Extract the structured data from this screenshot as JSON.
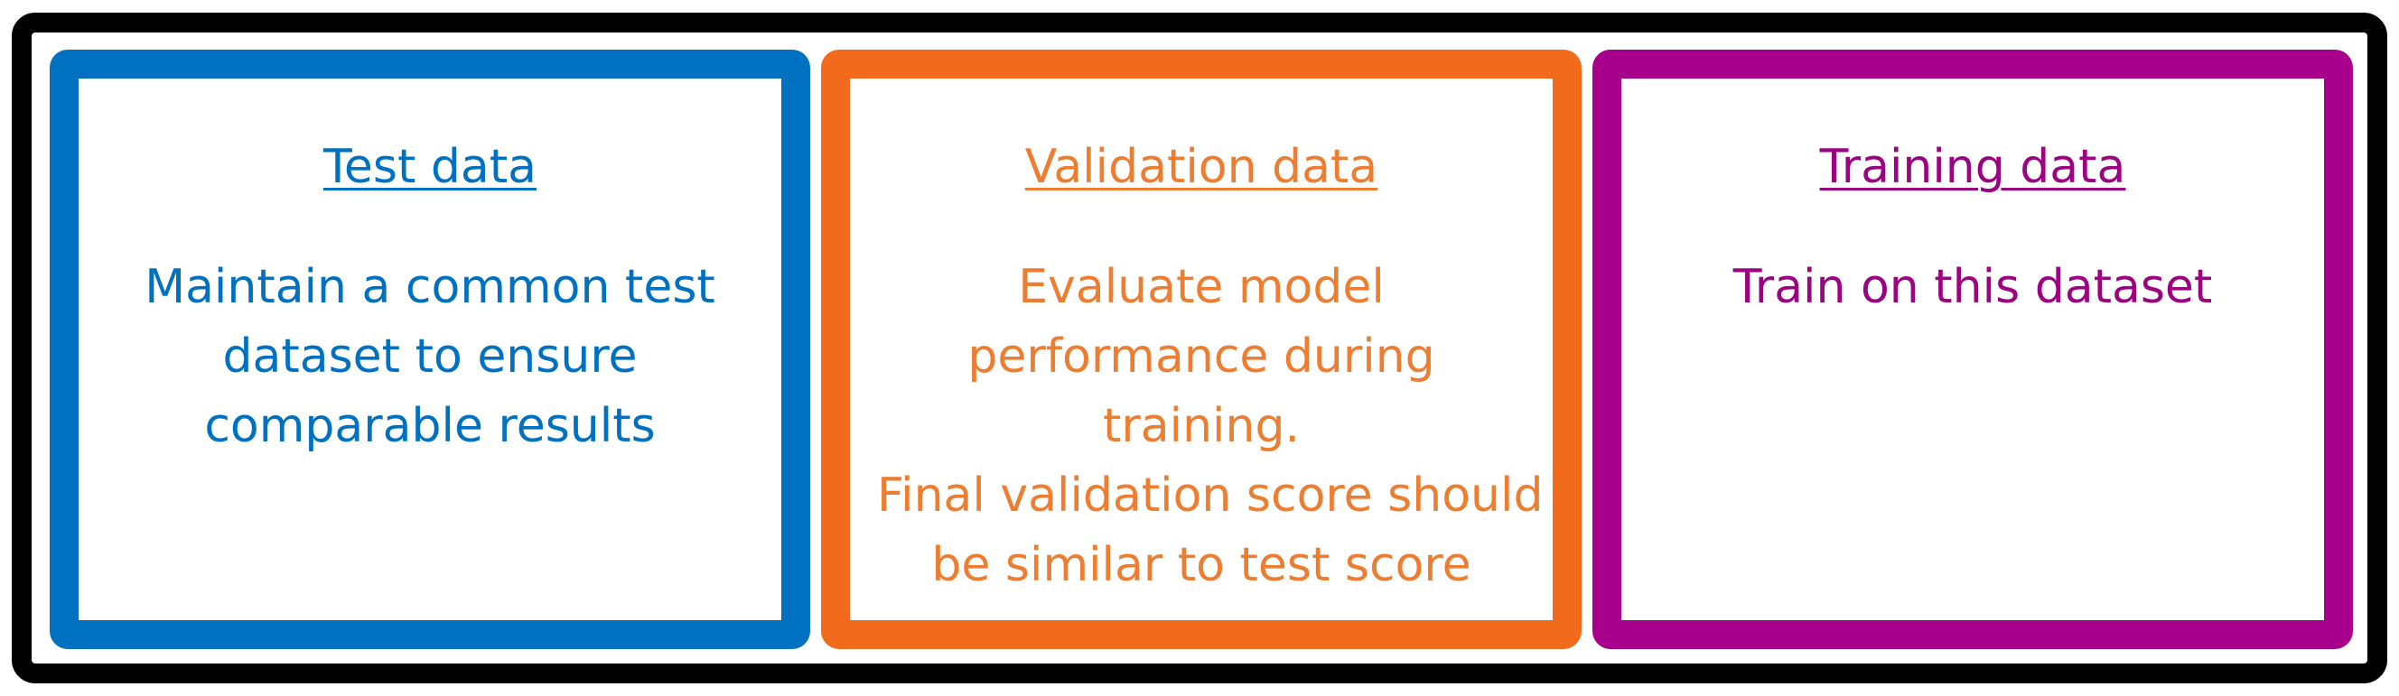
{
  "colors": {
    "frame": "#000000",
    "test": "#0070C0",
    "validation": "#F26A1B",
    "validation_text": "#ED7D31",
    "training": "#A6008C",
    "training_text": "#9B0480"
  },
  "panels": {
    "test": {
      "title": "Test data",
      "lines": [
        "Maintain a common test",
        "dataset to ensure",
        "comparable results"
      ]
    },
    "validation": {
      "title": "Validation  data",
      "lines": [
        "Evaluate model",
        "performance during",
        "training.",
        "Final validation score should",
        "be similar to test score"
      ]
    },
    "training": {
      "title": "Training  data",
      "lines": [
        "Train on this dataset"
      ]
    }
  }
}
